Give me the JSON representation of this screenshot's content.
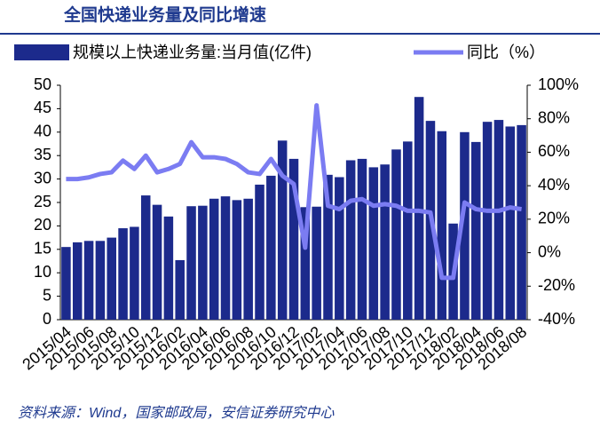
{
  "chart_data": {
    "type": "bar_line",
    "title": "全国快递业务量及同比增速",
    "source": "资料来源：Wind，国家邮政局，安信证券研究中心",
    "categories": [
      "2015/04",
      null,
      "2015/06",
      null,
      "2015/08",
      null,
      "2015/10",
      null,
      "2015/12",
      null,
      "2016/02",
      null,
      "2016/04",
      null,
      "2016/06",
      null,
      "2016/08",
      null,
      "2016/10",
      null,
      "2016/12",
      null,
      "2017/02",
      null,
      "2017/04",
      null,
      "2017/06",
      null,
      "2017/08",
      null,
      "2017/10",
      null,
      "2017/12",
      null,
      "2018/02",
      null,
      "2018/04",
      null,
      "2018/06",
      null,
      "2018/08"
    ],
    "series": [
      {
        "name": "规模以上快递业务量:当月值(亿件)",
        "type": "bar",
        "color": "#1c2a8c",
        "values": [
          15.5,
          16.5,
          16.8,
          16.8,
          17.5,
          19.5,
          19.8,
          26.5,
          24.5,
          22,
          12.7,
          24.2,
          24.3,
          25.8,
          26.3,
          25.5,
          25.8,
          28.8,
          30.7,
          38.2,
          34.3,
          24,
          24.1,
          30.9,
          30.4,
          34,
          34.3,
          32.5,
          33.1,
          36.3,
          38,
          47.5,
          42.4,
          40.2,
          20.5,
          40,
          37.9,
          42.2,
          42.6,
          41.2,
          41.5
        ]
      },
      {
        "name": "同比（%）",
        "type": "line",
        "axis": "y2",
        "color": "#7b7cf2",
        "values": [
          44,
          44,
          45,
          47,
          48,
          55,
          50,
          58,
          48,
          50,
          53,
          66,
          57,
          57,
          56,
          53,
          48,
          47,
          56,
          46,
          41,
          3,
          88,
          28,
          26,
          31,
          32,
          28,
          29,
          28,
          25,
          25,
          24,
          -15,
          -15,
          30,
          26,
          25,
          25,
          27,
          26
        ]
      }
    ],
    "ylim": [
      0,
      50
    ],
    "yticks": [
      0,
      5,
      10,
      15,
      20,
      25,
      30,
      35,
      40,
      45,
      50
    ],
    "y2lim": [
      -40,
      100
    ],
    "y2ticks": [
      {
        "value": -40,
        "label": "-40%"
      },
      {
        "value": -20,
        "label": "-20%"
      },
      {
        "value": 0,
        "label": "0%"
      },
      {
        "value": 20,
        "label": "20%"
      },
      {
        "value": 40,
        "label": "40%"
      },
      {
        "value": 60,
        "label": "60%"
      },
      {
        "value": 80,
        "label": "80%"
      },
      {
        "value": 100,
        "label": "100%"
      }
    ]
  }
}
